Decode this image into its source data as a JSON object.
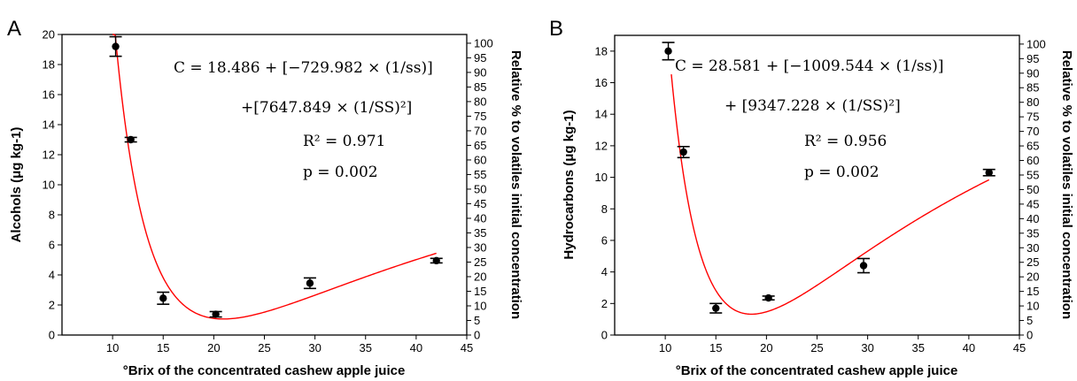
{
  "chart_data": [
    {
      "type": "scatter",
      "panel_label": "A",
      "xlabel": "°Brix of the concentrated cashew apple juice",
      "ylabel": "Alcohols (μg kg-1)",
      "y2label": "Relative % to volatiles initial concentration",
      "xlim": [
        5,
        45
      ],
      "ylim": [
        0,
        20
      ],
      "y2lim": [
        0,
        103
      ],
      "xticks": [
        10,
        15,
        20,
        25,
        30,
        35,
        40,
        45
      ],
      "yticks": [
        0,
        2,
        4,
        6,
        8,
        10,
        12,
        14,
        16,
        18,
        20
      ],
      "y2ticks": [
        0,
        5,
        10,
        15,
        20,
        25,
        30,
        35,
        40,
        45,
        50,
        55,
        60,
        65,
        70,
        75,
        80,
        85,
        90,
        95,
        100
      ],
      "points": [
        {
          "x": 10.3,
          "y": 19.2,
          "err": 0.65
        },
        {
          "x": 11.8,
          "y": 13.0,
          "err": 0.15
        },
        {
          "x": 15.0,
          "y": 2.45,
          "err": 0.4
        },
        {
          "x": 20.2,
          "y": 1.38,
          "err": 0.18
        },
        {
          "x": 29.5,
          "y": 3.45,
          "err": 0.35
        },
        {
          "x": 42.0,
          "y": 4.95,
          "err": 0.15
        }
      ],
      "fit": {
        "a": 18.486,
        "b": -729.982,
        "c": 7647.849,
        "x_from": 10.0,
        "x_to": 42.0,
        "color": "#ff0000"
      },
      "equation": {
        "line1": "C = 18.486 + [−729.982 × (1/ss)]",
        "line2": "+[7647.849 × (1/SS)²]",
        "line3": "R² = 0.971",
        "line4": "p = 0.002"
      }
    },
    {
      "type": "scatter",
      "panel_label": "B",
      "xlabel": "°Brix of the concentrated cashew apple juice",
      "ylabel": "Hydrocarbons (μg kg-1)",
      "y2label": "Relative % to volatiles initial concentration",
      "xlim": [
        5,
        45
      ],
      "ylim": [
        0,
        19
      ],
      "y2lim": [
        0,
        103
      ],
      "xticks": [
        10,
        15,
        20,
        25,
        30,
        35,
        40,
        45
      ],
      "yticks": [
        0,
        2,
        4,
        6,
        8,
        10,
        12,
        14,
        16,
        18
      ],
      "y2ticks": [
        0,
        5,
        10,
        15,
        20,
        25,
        30,
        35,
        40,
        45,
        50,
        55,
        60,
        65,
        70,
        75,
        80,
        85,
        90,
        95,
        100
      ],
      "points": [
        {
          "x": 10.3,
          "y": 18.0,
          "err": 0.55
        },
        {
          "x": 11.8,
          "y": 11.6,
          "err": 0.35
        },
        {
          "x": 15.0,
          "y": 1.7,
          "err": 0.3
        },
        {
          "x": 20.2,
          "y": 2.35,
          "err": 0.12
        },
        {
          "x": 29.6,
          "y": 4.4,
          "err": 0.45
        },
        {
          "x": 42.0,
          "y": 10.3,
          "err": 0.2
        }
      ],
      "fit": {
        "a": 28.581,
        "b": -1009.544,
        "c": 9347.228,
        "x_from": 10.6,
        "x_to": 42.0,
        "color": "#ff0000"
      },
      "equation": {
        "line1": "C = 28.581 + [−1009.544 × (1/ss)]",
        "line2": "+ [9347.228 × (1/SS)²]",
        "line3": "R² = 0.956",
        "line4": "p = 0.002"
      }
    }
  ]
}
